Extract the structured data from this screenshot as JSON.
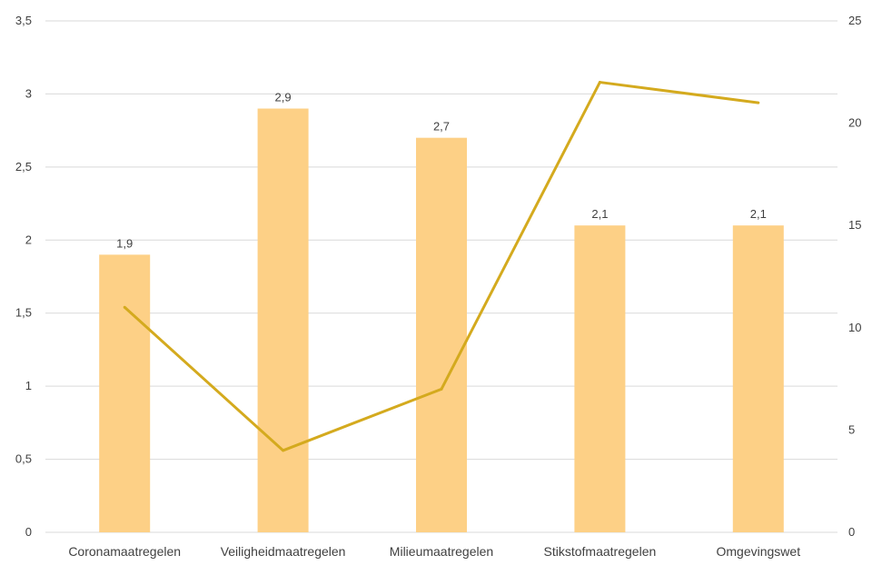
{
  "chart_data": {
    "type": "bar",
    "categories": [
      "Coronamaatregelen",
      "Veiligheidmaatregelen",
      "Milieumaatregelen",
      "Stikstofmaatregelen",
      "Omgevingswet"
    ],
    "series": [
      {
        "type": "bar",
        "axis": "left",
        "values": [
          1.9,
          2.9,
          2.7,
          2.1,
          2.1
        ],
        "data_labels": [
          "1,9",
          "2,9",
          "2,7",
          "2,1",
          "2,1"
        ],
        "color": "#fdd086"
      },
      {
        "type": "line",
        "axis": "right",
        "values": [
          11,
          4,
          7,
          22,
          21
        ],
        "color": "#d4aa1e"
      }
    ],
    "y_left": {
      "ylim": [
        0,
        3.5
      ],
      "ticks": [
        0,
        0.5,
        1,
        1.5,
        2,
        2.5,
        3,
        3.5
      ],
      "tick_labels": [
        "0",
        "0,5",
        "1",
        "1,5",
        "2",
        "2,5",
        "3",
        "3,5"
      ]
    },
    "y_right": {
      "ylim": [
        0,
        25
      ],
      "ticks": [
        0,
        5,
        10,
        15,
        20,
        25
      ],
      "tick_labels": [
        "0",
        "5",
        "10",
        "15",
        "20",
        "25"
      ]
    },
    "grid": true,
    "legend": "none"
  }
}
